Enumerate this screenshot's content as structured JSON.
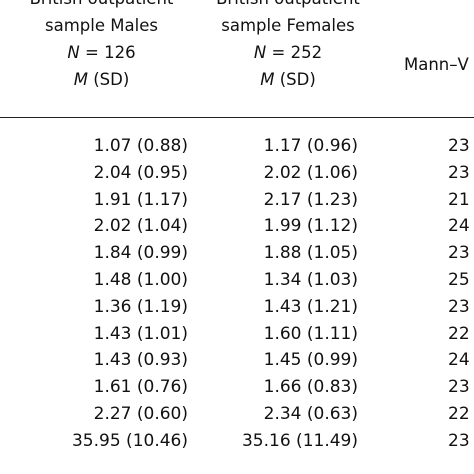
{
  "header": {
    "males": {
      "line1": "British outpatient",
      "line2": "sample Males",
      "n_label": "N",
      "n_value": " = 126",
      "m_label": "M",
      "sd_label": " (SD)"
    },
    "females": {
      "line1": "British outpatient",
      "line2": "sample Females",
      "n_label": "N",
      "n_value": " = 252",
      "m_label": "M",
      "sd_label": " (SD)"
    },
    "mann_whitney": "Mann–V"
  },
  "rows": [
    {
      "males": "1.07 (0.88)",
      "females": "1.17 (0.96)",
      "u": "23"
    },
    {
      "males": "2.04 (0.95)",
      "females": "2.02 (1.06)",
      "u": "23"
    },
    {
      "males": "1.91 (1.17)",
      "females": "2.17 (1.23)",
      "u": "21"
    },
    {
      "males": "2.02 (1.04)",
      "females": "1.99 (1.12)",
      "u": "24"
    },
    {
      "males": "1.84 (0.99)",
      "females": "1.88 (1.05)",
      "u": "23"
    },
    {
      "males": "1.48 (1.00)",
      "females": "1.34 (1.03)",
      "u": "25"
    },
    {
      "males": "1.36 (1.19)",
      "females": "1.43 (1.21)",
      "u": "23"
    },
    {
      "males": "1.43 (1.01)",
      "females": "1.60 (1.11)",
      "u": "22"
    },
    {
      "males": "1.43 (0.93)",
      "females": "1.45 (0.99)",
      "u": "24"
    },
    {
      "males": "1.61 (0.76)",
      "females": "1.66 (0.83)",
      "u": "23"
    },
    {
      "males": "2.27 (0.60)",
      "females": "2.34 (0.63)",
      "u": "22"
    },
    {
      "males": "35.95 (10.46)",
      "females": "35.16 (11.49)",
      "u": "23"
    }
  ]
}
